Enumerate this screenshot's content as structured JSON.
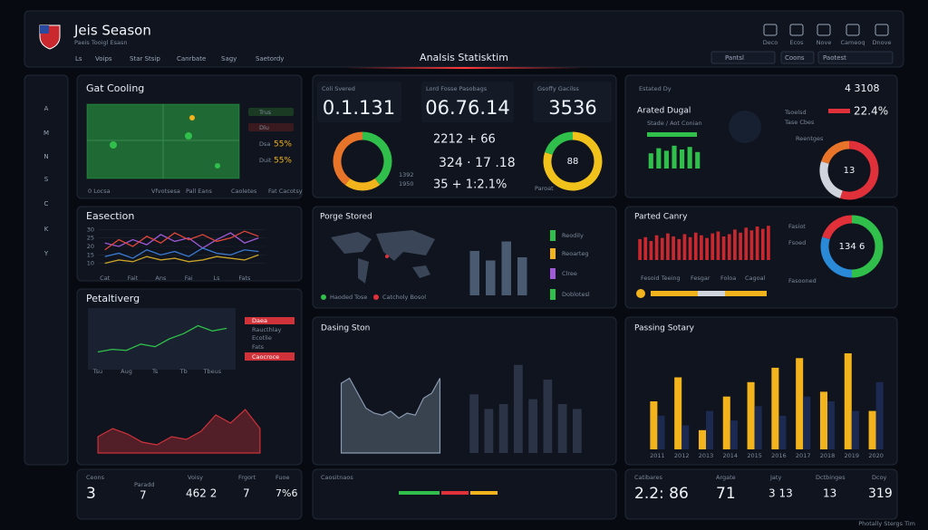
{
  "header": {
    "title": "Jeis Season",
    "subtitle": "Paeis Tooigl Esasn",
    "nav": [
      "Ls",
      "Voips",
      "Star Stsip",
      "Canrbate",
      "Sagy",
      "Saetordy"
    ],
    "center_title": "Analsis Statisktim",
    "filters": [
      "Pantsl",
      "Coons",
      "Paotest"
    ],
    "icons": [
      "Deco",
      "Ecos",
      "Nove",
      "Cameoq",
      "Dnove"
    ]
  },
  "sidebar": [
    "A",
    "M",
    "N",
    "S",
    "C",
    "K",
    "Y"
  ],
  "field": {
    "title": "Gat Cooling",
    "legend": [
      "Trus",
      "Dlu",
      "Dsa",
      "Duit"
    ],
    "legend_values": [
      "55%",
      "55%"
    ],
    "footer": [
      "0 Locsa",
      "Vfvotsesa",
      "Pall Eans",
      "Caoletes",
      "Fat Cacotsy"
    ]
  },
  "kpis": {
    "labels": [
      "Coli Svered",
      "Lord Fosse Pasobags",
      "Gsoffy Gacilss"
    ],
    "values": [
      "0.1.131",
      "06.76.14",
      "3536"
    ],
    "stats": [
      "2212 + 66",
      "324 · 17 .18",
      "35 + 1:2.1%"
    ],
    "notes": [
      "1392",
      "1950",
      "Paroat"
    ]
  },
  "estated": {
    "title": "Estated Dy",
    "subtitle": "Arated Dugal",
    "caption": "Stade / Aot Conian",
    "big": "4 3108",
    "pct": "22.4%",
    "list": [
      "Tsoelsd",
      "Tase Cbes",
      "Reentges"
    ]
  },
  "porge": {
    "title": "Porge Stored",
    "legend": [
      "Haoded Tose",
      "Catcholy Bosol"
    ],
    "rows": [
      "Reodily",
      "Reoarteg",
      "Clree",
      "Doblotesl"
    ]
  },
  "canry": {
    "title": "Parted Canry",
    "legend": [
      "Fesoid Teeing",
      "Fesgar",
      "Foloa",
      "Cagoal"
    ],
    "side": [
      "Fasiot",
      "Fsoed",
      "Fasooned"
    ]
  },
  "titles": {
    "easection": "Easection",
    "petal": "Petaltiverg",
    "dasing": "Dasing Ston",
    "passing": "Passing Sotary"
  },
  "petal_list": [
    "Daea",
    "Raucthlay",
    "Ecotlie",
    "Fats",
    "Caocroce"
  ],
  "bottom": {
    "left": [
      {
        "label": "Ceons",
        "value": "3"
      },
      {
        "label": "Paradd",
        "value": "7"
      },
      {
        "label": "Voisy",
        "value": "462 2"
      },
      {
        "label": "Frgort",
        "value": "7"
      },
      {
        "label": "Fuoe",
        "value": "7%6"
      }
    ],
    "middle": "Caositnaos",
    "right": [
      {
        "label": "Catibares",
        "value": "2.2: 86"
      },
      {
        "label": "Argate",
        "value": "71"
      },
      {
        "label": "Jaty",
        "value": "3 13"
      },
      {
        "label": "Dctbinges",
        "value": "13"
      },
      {
        "label": "Dcoy",
        "value": "319"
      }
    ]
  },
  "footer": "Photally Stergs Tim",
  "charts": {
    "easection": {
      "type": "line",
      "categories": [
        "Cat",
        null,
        "Fait",
        null,
        "Ans",
        null,
        "Fai",
        null,
        "Ls",
        null,
        "Fats",
        null
      ],
      "ylim": [
        5,
        35
      ],
      "yticks": [
        10,
        15,
        20,
        25,
        30
      ],
      "series": [
        {
          "name": "A",
          "color": "#a05ad8",
          "values": [
            22,
            20,
            24,
            21,
            27,
            23,
            25,
            19,
            24,
            28,
            22,
            25
          ]
        },
        {
          "name": "B",
          "color": "#e0463a",
          "values": [
            18,
            24,
            20,
            26,
            22,
            28,
            24,
            27,
            23,
            25,
            29,
            26
          ]
        },
        {
          "name": "C",
          "color": "#3a7ad0",
          "values": [
            14,
            16,
            13,
            18,
            15,
            17,
            14,
            19,
            16,
            15,
            18,
            17
          ]
        },
        {
          "name": "D",
          "color": "#c9a227",
          "values": [
            10,
            12,
            11,
            14,
            12,
            13,
            11,
            12,
            14,
            13,
            12,
            15
          ]
        }
      ]
    },
    "petal": {
      "type": "line",
      "categories": [
        "Tsu",
        null,
        "Aug",
        null,
        "Ts",
        null,
        "Tb",
        null,
        "Tbeus",
        null
      ],
      "ylim": [
        0,
        100
      ],
      "series": [
        {
          "name": "Line",
          "color": "#2fbf4a",
          "values": [
            25,
            30,
            28,
            40,
            35,
            50,
            60,
            75,
            65,
            70
          ]
        }
      ]
    },
    "petal_area": {
      "type": "area",
      "categories": [
        null,
        null,
        null,
        null,
        null,
        null,
        null,
        null,
        null,
        null,
        null,
        null
      ],
      "ylim": [
        0,
        100
      ],
      "series": [
        {
          "name": "Area",
          "color": "#d0323a",
          "values": [
            30,
            45,
            35,
            20,
            15,
            30,
            25,
            40,
            70,
            55,
            80,
            45
          ]
        }
      ]
    },
    "dasing_area": {
      "type": "area",
      "categories": [
        null,
        null,
        null,
        null,
        null,
        null,
        null,
        null,
        null,
        null,
        null,
        null,
        null
      ],
      "ylim": [
        0,
        100
      ],
      "series": [
        {
          "name": "Area",
          "color": "#8a9ab0",
          "values": [
            70,
            75,
            60,
            45,
            40,
            38,
            42,
            35,
            40,
            38,
            55,
            60,
            75
          ]
        }
      ]
    },
    "dasing_bars": {
      "type": "bar",
      "categories": [
        null,
        null,
        null,
        null,
        null,
        null,
        null,
        null
      ],
      "ylim": [
        0,
        100
      ],
      "series": [
        {
          "name": "Bars",
          "color": "#2a3446",
          "values": [
            60,
            45,
            50,
            90,
            55,
            75,
            50,
            45
          ]
        }
      ]
    },
    "passing": {
      "type": "bar",
      "categories": [
        "2011",
        "2012",
        "2013",
        "2014",
        "2015",
        "2016",
        "2017",
        "2018",
        "2019",
        "2020"
      ],
      "ylim": [
        0,
        100
      ],
      "series": [
        {
          "name": "Y",
          "color": "#f2b31c",
          "values": [
            50,
            75,
            20,
            55,
            70,
            85,
            95,
            60,
            100,
            40
          ]
        },
        {
          "name": "N",
          "color": "#1c2a52",
          "values": [
            35,
            25,
            40,
            30,
            45,
            35,
            55,
            50,
            40,
            70
          ]
        }
      ]
    },
    "canry": {
      "type": "bar",
      "categories": [
        null,
        null,
        null,
        null,
        null,
        null,
        null,
        null,
        null,
        null,
        null,
        null,
        null,
        null,
        null,
        null,
        null,
        null,
        null,
        null,
        null,
        null,
        null,
        null
      ],
      "ylim": [
        0,
        100
      ],
      "series": [
        {
          "name": "R",
          "color": "#c8282e",
          "values": [
            55,
            60,
            50,
            65,
            58,
            70,
            62,
            55,
            68,
            60,
            72,
            65,
            58,
            70,
            75,
            62,
            68,
            80,
            72,
            85,
            78,
            88,
            82,
            90
          ]
        }
      ]
    },
    "estated_bars": {
      "type": "bar",
      "categories": [
        null,
        null,
        null,
        null,
        null,
        null,
        null
      ],
      "ylim": [
        0,
        100
      ],
      "series": [
        {
          "name": "G",
          "color": "#2fbf4a",
          "values": [
            60,
            80,
            70,
            90,
            75,
            85,
            65
          ]
        }
      ]
    },
    "porge": {
      "type": "bar",
      "categories": [
        null,
        null,
        null,
        null
      ],
      "ylim": [
        0,
        100
      ],
      "series": [
        {
          "name": "P",
          "color": "#4a5a70",
          "values": [
            70,
            55,
            85,
            60
          ]
        }
      ]
    },
    "donut1": {
      "type": "pie",
      "values": [
        40,
        20,
        40
      ],
      "colors": [
        "#2fbf4a",
        "#f2b31c",
        "#e8742a"
      ]
    },
    "donut2": {
      "type": "pie",
      "values": [
        80,
        20
      ],
      "colors": [
        "#f2c21c",
        "#2fbf4a"
      ],
      "center": "88"
    },
    "gauge1": {
      "type": "pie",
      "values": [
        55,
        25,
        20
      ],
      "colors": [
        "#e0303a",
        "#d0d4dc",
        "#e8742a"
      ],
      "center": "13"
    },
    "gauge2": {
      "type": "pie",
      "values": [
        50,
        30,
        20
      ],
      "colors": [
        "#2fbf4a",
        "#2a8ad8",
        "#e0303a"
      ],
      "center": "134 6"
    }
  }
}
